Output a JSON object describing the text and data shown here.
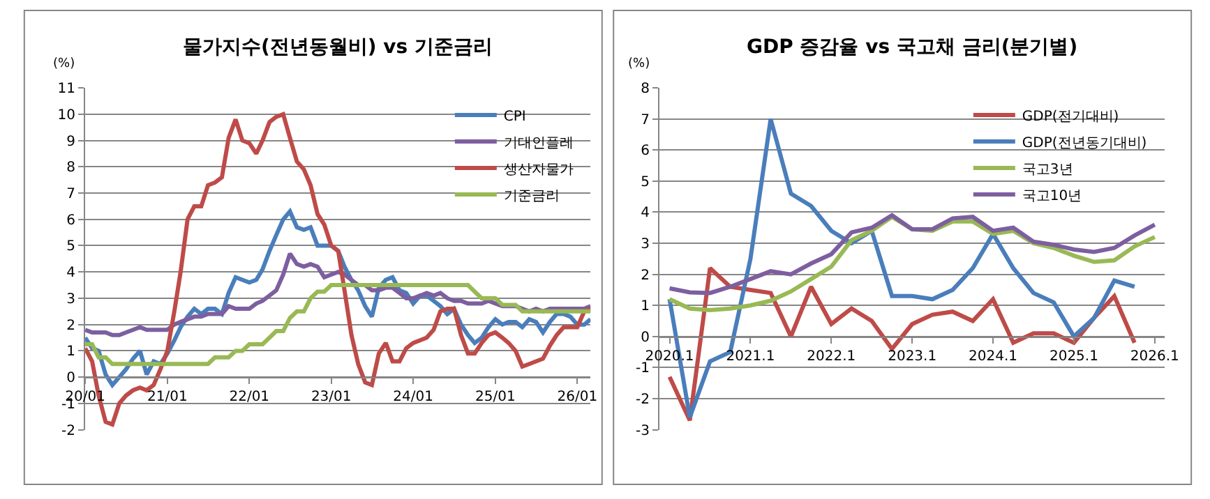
{
  "chart_data": [
    {
      "type": "line",
      "title": "물가지수(전년동월비) vs 기준금리",
      "ylabel": "(%)",
      "x": [
        "2020-01",
        "2020-02",
        "2020-03",
        "2020-04",
        "2020-05",
        "2020-06",
        "2020-07",
        "2020-08",
        "2020-09",
        "2020-10",
        "2020-11",
        "2020-12",
        "2021-01",
        "2021-02",
        "2021-03",
        "2021-04",
        "2021-05",
        "2021-06",
        "2021-07",
        "2021-08",
        "2021-09",
        "2021-10",
        "2021-11",
        "2021-12",
        "2022-01",
        "2022-02",
        "2022-03",
        "2022-04",
        "2022-05",
        "2022-06",
        "2022-07",
        "2022-08",
        "2022-09",
        "2022-10",
        "2022-11",
        "2022-12",
        "2023-01",
        "2023-02",
        "2023-03",
        "2023-04",
        "2023-05",
        "2023-06",
        "2023-07",
        "2023-08",
        "2023-09",
        "2023-10",
        "2023-11",
        "2023-12",
        "2024-01",
        "2024-02",
        "2024-03",
        "2024-04",
        "2024-05",
        "2024-06",
        "2024-07",
        "2024-08",
        "2024-09",
        "2024-10",
        "2024-11",
        "2024-12",
        "2025-01",
        "2025-02",
        "2025-03",
        "2025-04",
        "2025-05",
        "2025-06",
        "2025-07",
        "2025-08",
        "2025-09",
        "2025-10",
        "2025-11",
        "2025-12",
        "2026-01",
        "2026-02",
        "2026-03"
      ],
      "series": [
        {
          "name": "CPI",
          "color": "#4a7ebb",
          "values": [
            1.5,
            1.1,
            1.0,
            0.1,
            -0.3,
            0.0,
            0.3,
            0.7,
            1.0,
            0.1,
            0.6,
            0.5,
            0.9,
            1.4,
            1.9,
            2.3,
            2.6,
            2.4,
            2.6,
            2.6,
            2.4,
            3.2,
            3.8,
            3.7,
            3.6,
            3.7,
            4.1,
            4.8,
            5.4,
            6.0,
            6.3,
            5.7,
            5.6,
            5.7,
            5.0,
            5.0,
            5.0,
            4.8,
            4.2,
            3.7,
            3.3,
            2.7,
            2.3,
            3.4,
            3.7,
            3.8,
            3.3,
            3.2,
            2.8,
            3.1,
            3.1,
            2.9,
            2.7,
            2.4,
            2.6,
            2.0,
            1.6,
            1.3,
            1.5,
            1.9,
            2.2,
            2.0,
            2.1,
            2.1,
            1.9,
            2.2,
            2.1,
            1.7,
            2.1,
            2.4,
            2.4,
            2.3,
            2.0,
            2.0,
            2.2
          ]
        },
        {
          "name": "기대인플레",
          "color": "#7d5fa0",
          "values": [
            1.8,
            1.7,
            1.7,
            1.7,
            1.6,
            1.6,
            1.7,
            1.8,
            1.9,
            1.8,
            1.8,
            1.8,
            1.8,
            2.0,
            2.1,
            2.2,
            2.3,
            2.3,
            2.4,
            2.4,
            2.4,
            2.7,
            2.6,
            2.6,
            2.6,
            2.8,
            2.9,
            3.1,
            3.3,
            3.9,
            4.7,
            4.3,
            4.2,
            4.3,
            4.2,
            3.8,
            3.9,
            4.0,
            3.9,
            3.7,
            3.5,
            3.5,
            3.3,
            3.3,
            3.4,
            3.4,
            3.2,
            3.0,
            3.0,
            3.1,
            3.2,
            3.1,
            3.2,
            3.0,
            2.9,
            2.9,
            2.8,
            2.8,
            2.8,
            2.9,
            2.8,
            2.7,
            2.7,
            2.7,
            2.6,
            2.5,
            2.6,
            2.5,
            2.6,
            2.6,
            2.6,
            2.6,
            2.6,
            2.6,
            2.7
          ]
        },
        {
          "name": "생산자물가",
          "color": "#be4b48",
          "values": [
            1.1,
            0.6,
            -0.7,
            -1.7,
            -1.8,
            -1.0,
            -0.7,
            -0.5,
            -0.4,
            -0.5,
            -0.3,
            0.3,
            1.0,
            2.5,
            4.0,
            6.0,
            6.5,
            6.5,
            7.3,
            7.4,
            7.6,
            9.1,
            9.8,
            9.0,
            8.9,
            8.5,
            9.0,
            9.7,
            9.9,
            10.0,
            9.1,
            8.2,
            7.9,
            7.3,
            6.2,
            5.8,
            5.0,
            4.8,
            3.3,
            1.6,
            0.5,
            -0.2,
            -0.3,
            0.9,
            1.3,
            0.6,
            0.6,
            1.1,
            1.3,
            1.4,
            1.5,
            1.8,
            2.5,
            2.6,
            2.6,
            1.6,
            0.9,
            0.9,
            1.3,
            1.6,
            1.7,
            1.5,
            1.3,
            1.0,
            0.4,
            0.5,
            0.6,
            0.7,
            1.2,
            1.6,
            1.9,
            1.9,
            1.9,
            2.5,
            2.6
          ]
        },
        {
          "name": "기준금리",
          "color": "#98b954",
          "values": [
            1.25,
            1.25,
            0.75,
            0.75,
            0.5,
            0.5,
            0.5,
            0.5,
            0.5,
            0.5,
            0.5,
            0.5,
            0.5,
            0.5,
            0.5,
            0.5,
            0.5,
            0.5,
            0.5,
            0.75,
            0.75,
            0.75,
            1.0,
            1.0,
            1.25,
            1.25,
            1.25,
            1.5,
            1.75,
            1.75,
            2.25,
            2.5,
            2.5,
            3.0,
            3.25,
            3.25,
            3.5,
            3.5,
            3.5,
            3.5,
            3.5,
            3.5,
            3.5,
            3.5,
            3.5,
            3.5,
            3.5,
            3.5,
            3.5,
            3.5,
            3.5,
            3.5,
            3.5,
            3.5,
            3.5,
            3.5,
            3.5,
            3.25,
            3.0,
            3.0,
            3.0,
            2.75,
            2.75,
            2.75,
            2.5,
            2.5,
            2.5,
            2.5,
            2.5,
            2.5,
            2.5,
            2.5,
            2.5,
            2.5,
            2.5
          ]
        }
      ],
      "xlim": [
        "2020-01",
        "2026-03"
      ],
      "xticks": [
        {
          "value": "2020-01",
          "label": "20/01"
        },
        {
          "value": "2021-01",
          "label": "21/01"
        },
        {
          "value": "2022-01",
          "label": "22/01"
        },
        {
          "value": "2023-01",
          "label": "23/01"
        },
        {
          "value": "2024-01",
          "label": "24/01"
        },
        {
          "value": "2025-01",
          "label": "25/01"
        },
        {
          "value": "2026-01",
          "label": "26/01"
        }
      ],
      "ylim": [
        -2,
        11
      ],
      "yticks": [
        -2,
        -1,
        0,
        1,
        2,
        3,
        4,
        5,
        6,
        7,
        8,
        9,
        10,
        11
      ],
      "grid": "y",
      "legend": "top right"
    },
    {
      "type": "line",
      "title": "GDP 증감율 vs 국고채 금리(분기별)",
      "ylabel": "(%)",
      "categories": [
        "2020.1",
        null,
        null,
        null,
        "2021.1",
        null,
        null,
        null,
        "2022.1",
        null,
        null,
        null,
        "2023.1",
        null,
        null,
        null,
        "2024.1",
        null,
        null,
        null,
        "2025.1",
        null,
        null,
        null,
        "2026.1"
      ],
      "series": [
        {
          "name": "GDP(전기대비)",
          "color": "#be4b48",
          "values": [
            -1.3,
            -2.7,
            2.2,
            1.6,
            1.5,
            1.4,
            0.0,
            1.6,
            0.4,
            0.9,
            0.5,
            -0.4,
            0.4,
            0.7,
            0.8,
            0.5,
            1.2,
            -0.2,
            0.1,
            0.1,
            -0.2,
            0.6,
            1.3,
            -0.2,
            null
          ]
        },
        {
          "name": "GDP(전년동기대비)",
          "color": "#4a7ebb",
          "values": [
            1.2,
            -2.6,
            -0.8,
            -0.5,
            2.5,
            7.0,
            4.6,
            4.2,
            3.4,
            3.0,
            3.4,
            1.3,
            1.3,
            1.2,
            1.5,
            2.2,
            3.3,
            2.2,
            1.4,
            1.1,
            0.0,
            0.6,
            1.8,
            1.6,
            null
          ]
        },
        {
          "name": "국고3년",
          "color": "#98b954",
          "values": [
            1.2,
            0.9,
            0.85,
            0.9,
            1.0,
            1.15,
            1.45,
            1.85,
            2.25,
            3.1,
            3.4,
            3.85,
            3.45,
            3.4,
            3.7,
            3.7,
            3.3,
            3.4,
            3.0,
            2.85,
            2.6,
            2.4,
            2.45,
            2.9,
            3.2
          ]
        },
        {
          "name": "국고10년",
          "color": "#7d5fa0",
          "values": [
            1.55,
            1.42,
            1.4,
            1.6,
            1.85,
            2.1,
            2.0,
            2.35,
            2.65,
            3.35,
            3.5,
            3.9,
            3.45,
            3.45,
            3.8,
            3.85,
            3.4,
            3.5,
            3.05,
            2.95,
            2.8,
            2.72,
            2.85,
            3.25,
            3.6
          ]
        }
      ],
      "ylim": [
        -3,
        8
      ],
      "yticks": [
        -3,
        -2,
        -1,
        0,
        1,
        2,
        3,
        4,
        5,
        6,
        7,
        8
      ],
      "grid": "y",
      "legend": "top right"
    }
  ]
}
